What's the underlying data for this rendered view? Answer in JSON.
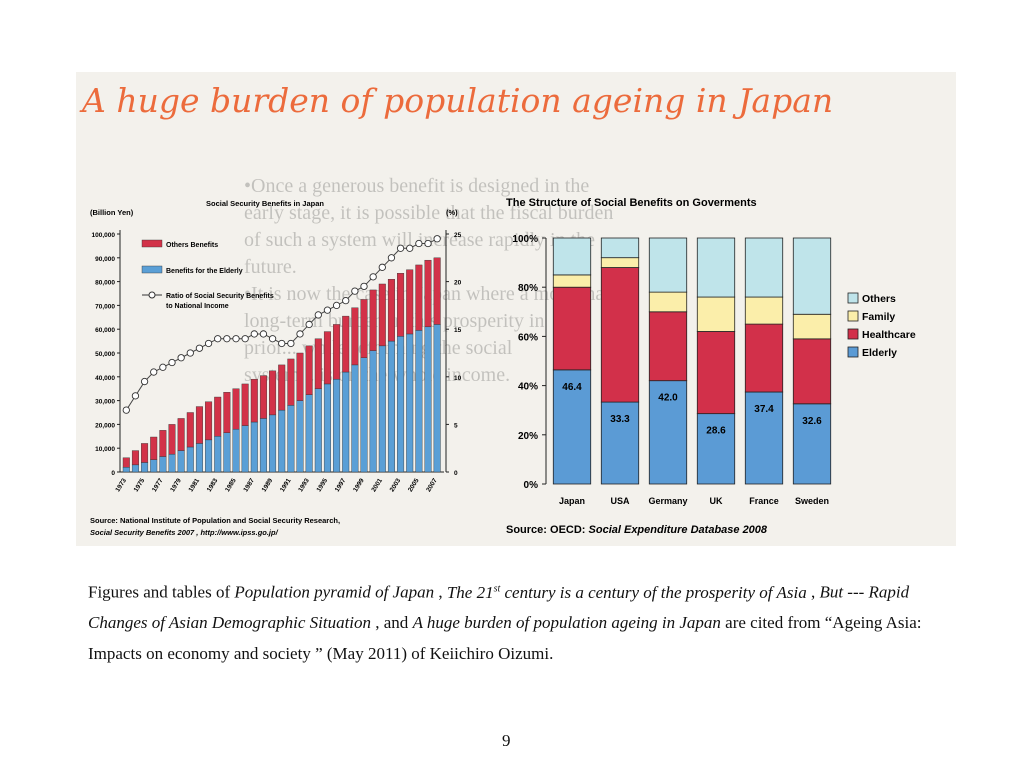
{
  "slide": {
    "title": "A huge burden of population ageing in Japan",
    "title_color": "#ec6b3c",
    "background_text": [
      "•Once a generous benefit is designed in the",
      "early stage, it is possible that the fiscal burden",
      "of such a system will increase rapidly in the",
      "future.",
      "•It is now the case in Japan where a more than",
      "long-term burden in this prosperity in",
      "prior... while reforming the social",
      "system... is on the whole income."
    ],
    "page_number": "9"
  },
  "caption": {
    "p1": "Figures and tables of ",
    "t1": "Population pyramid of Japan",
    "p2": "  , ",
    "t2a": "The 21",
    "t2sup": "st",
    "t2b": "  century  is  a  century of  the prosperity of Asia",
    "p3": "  , ",
    "t3": "But  --- Rapid  Changes  of  Asian Demographic Situation",
    "p4": " , and ",
    "t4": "A huge burden of population ageing in Japan",
    "p5": " are cited from “Ageing Asia: Impacts on economy and society ” (May 2011)  of  Keiichiro  Oizumi."
  },
  "chart_data": [
    {
      "type": "bar",
      "subtype": "stacked-bar-with-line",
      "title": "Social Security Benefits in Japan",
      "ylabel": "(Billion Yen)",
      "y2label": "(%)",
      "ylim": [
        0,
        100000
      ],
      "y2lim": [
        0,
        25
      ],
      "yticks": [
        "100,000",
        "90,000",
        "80,000",
        "70,000",
        "60,000",
        "50,000",
        "40,000",
        "30,000",
        "20,000",
        "10,000",
        "0"
      ],
      "y2ticks": [
        "25",
        "20",
        "15",
        "10",
        "5",
        "0"
      ],
      "xtick_labels": [
        "1973",
        "1975",
        "1977",
        "1979",
        "1981",
        "1983",
        "1985",
        "1987",
        "1989",
        "1991",
        "1993",
        "1995",
        "1997",
        "1999",
        "2001",
        "2003",
        "2005",
        "2007"
      ],
      "legend": [
        "Others Benefits",
        "Benefits for the Elderly",
        "Ratio of Social Security Benefits to National Income"
      ],
      "colors": {
        "others": "#d23248",
        "elderly": "#5a9fd6",
        "line": "#444444"
      },
      "years": [
        1973,
        1974,
        1975,
        1976,
        1977,
        1978,
        1979,
        1980,
        1981,
        1982,
        1983,
        1984,
        1985,
        1986,
        1987,
        1988,
        1989,
        1990,
        1991,
        1992,
        1993,
        1994,
        1995,
        1996,
        1997,
        1998,
        1999,
        2000,
        2001,
        2002,
        2003,
        2004,
        2005,
        2006,
        2007
      ],
      "series": [
        {
          "name": "Benefits for the Elderly",
          "values": [
            2000,
            3000,
            4000,
            5200,
            6500,
            7500,
            9000,
            10500,
            12000,
            13500,
            15000,
            16500,
            18000,
            19500,
            21000,
            22500,
            24000,
            26000,
            28000,
            30000,
            32500,
            35000,
            37000,
            39000,
            42000,
            45000,
            48000,
            51000,
            53000,
            55000,
            57000,
            58000,
            59500,
            61000,
            62000
          ]
        },
        {
          "name": "Others Benefits",
          "values": [
            4000,
            6000,
            8000,
            9500,
            11000,
            12500,
            13500,
            14500,
            15500,
            16000,
            16500,
            17000,
            17000,
            17500,
            18000,
            18000,
            18500,
            19000,
            19500,
            20000,
            20500,
            21000,
            22000,
            23000,
            23500,
            24000,
            24500,
            25500,
            26000,
            26000,
            26500,
            27000,
            27500,
            28000,
            28000
          ]
        },
        {
          "name": "Ratio of Social Security Benefits to National Income",
          "values": [
            6.5,
            8.0,
            9.5,
            10.5,
            11.0,
            11.5,
            12.0,
            12.5,
            13.0,
            13.5,
            14.0,
            14.0,
            14.0,
            14.0,
            14.5,
            14.5,
            14.0,
            13.5,
            13.5,
            14.5,
            15.5,
            16.5,
            17.0,
            17.5,
            18.0,
            19.0,
            19.5,
            20.5,
            21.5,
            22.5,
            23.5,
            23.5,
            24.0,
            24.0,
            24.5
          ]
        }
      ],
      "source": "Source: National Institute of Population and Social Security Research, Social Security Benefits 2007 , http://www.ipss.go.jp/"
    },
    {
      "type": "bar",
      "subtype": "stacked-100-percent",
      "title": "The Structure of Social Benefits on Goverments",
      "categories": [
        "Japan",
        "USA",
        "Germany",
        "UK",
        "France",
        "Sweden"
      ],
      "ylim": [
        0,
        100
      ],
      "yticks": [
        "100%",
        "80%",
        "60%",
        "40%",
        "20%",
        "0%"
      ],
      "series": [
        {
          "name": "Elderly",
          "color": "#5b9bd5",
          "values": [
            46.4,
            33.3,
            42.0,
            28.6,
            37.4,
            32.6
          ]
        },
        {
          "name": "Healthcare",
          "color": "#d2304a",
          "values": [
            33.6,
            54.7,
            28.0,
            33.4,
            27.6,
            26.4
          ]
        },
        {
          "name": "Family",
          "color": "#fbeeaa",
          "values": [
            5.0,
            4.0,
            8.0,
            14.0,
            11.0,
            10.0
          ]
        },
        {
          "name": "Others",
          "color": "#bfe4ea",
          "values": [
            15.0,
            8.0,
            22.0,
            24.0,
            24.0,
            31.0
          ]
        }
      ],
      "elderly_labels": [
        "46.4",
        "33.3",
        "42.0",
        "28.6",
        "37.4",
        "32.6"
      ],
      "legend": [
        "Others",
        "Family",
        "Healthcare",
        "Elderly"
      ],
      "source_prefix": "Source: OECD: ",
      "source_title": "Social Expenditure Database 2008"
    }
  ]
}
